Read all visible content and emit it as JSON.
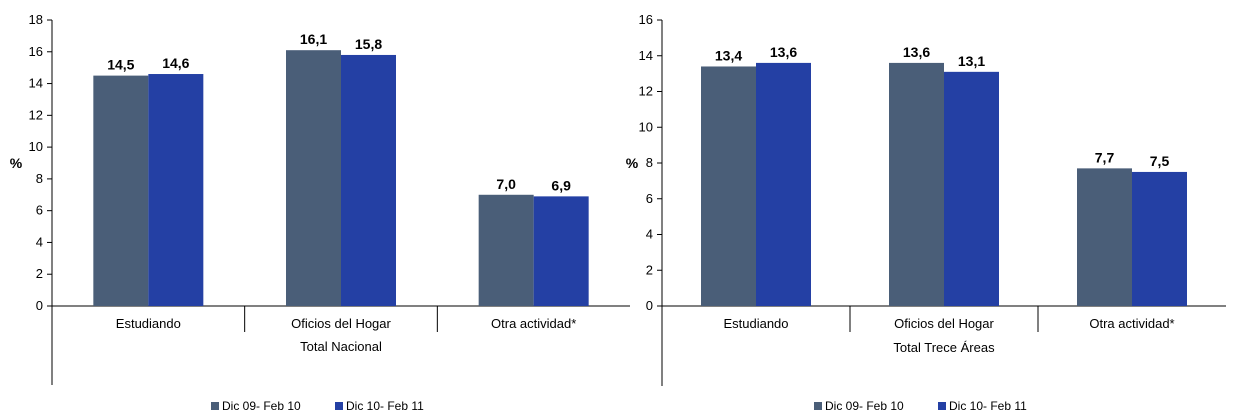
{
  "colors": {
    "series1": "#4a5e78",
    "series2": "#2440a4",
    "axis": "#000000"
  },
  "legend": [
    {
      "label": "Dic 09- Feb 10",
      "color": "#4a5e78"
    },
    {
      "label": "Dic 10- Feb 11",
      "color": "#2440a4"
    }
  ],
  "chart_data": [
    {
      "type": "bar",
      "ylabel": "%",
      "xlabel": "Total Nacional",
      "ylim": [
        0,
        18
      ],
      "ytick_step": 2,
      "grid": false,
      "legend_position": "bottom",
      "categories": [
        "Estudiando",
        "Oficios del Hogar",
        "Otra actividad*"
      ],
      "series": [
        {
          "name": "Dic 09- Feb 10",
          "values": [
            14.5,
            16.1,
            7.0
          ],
          "labels": [
            "14,5",
            "16,1",
            "7,0"
          ]
        },
        {
          "name": "Dic 10- Feb 11",
          "values": [
            14.6,
            15.8,
            6.9
          ],
          "labels": [
            "14,6",
            "15,8",
            "6,9"
          ]
        }
      ]
    },
    {
      "type": "bar",
      "ylabel": "%",
      "xlabel": "Total Trece Áreas",
      "ylim": [
        0,
        16
      ],
      "ytick_step": 2,
      "grid": false,
      "legend_position": "bottom",
      "categories": [
        "Estudiando",
        "Oficios del Hogar",
        "Otra actividad*"
      ],
      "series": [
        {
          "name": "Dic 09- Feb 10",
          "values": [
            13.4,
            13.6,
            7.7
          ],
          "labels": [
            "13,4",
            "13,6",
            "7,7"
          ]
        },
        {
          "name": "Dic 10- Feb 11",
          "values": [
            13.6,
            13.1,
            7.5
          ],
          "labels": [
            "13,6",
            "13,1",
            "7,5"
          ]
        }
      ]
    }
  ]
}
